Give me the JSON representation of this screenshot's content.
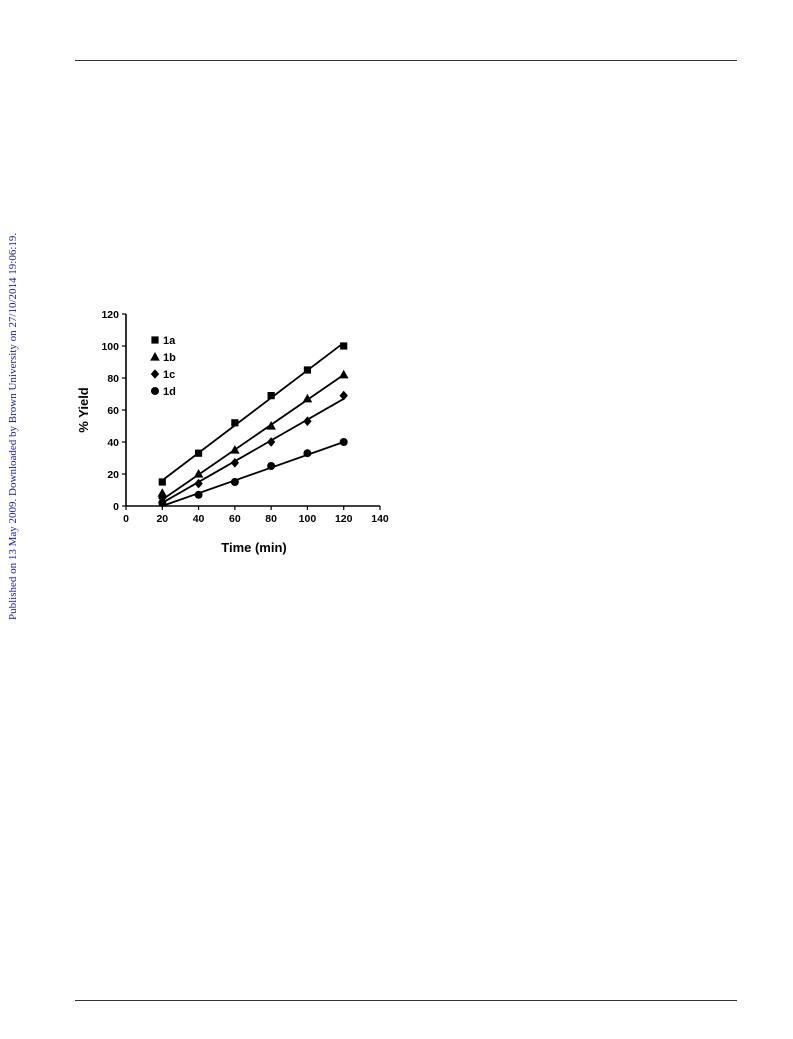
{
  "page": {
    "side_note": "Published on 13 May 2009. Downloaded by Brown University on 27/10/2014 19:06:19.",
    "link_color": "#1a1aa8",
    "rule_color": "#333333"
  },
  "chart_data": {
    "type": "scatter",
    "title": "",
    "xlabel": "Time (min)",
    "ylabel": "% Yield",
    "xlim": [
      0,
      140
    ],
    "ylim": [
      0,
      120
    ],
    "xticks": [
      "0",
      "20",
      "40",
      "60",
      "80",
      "100",
      "120",
      "140"
    ],
    "yticks": [
      "0",
      "20",
      "40",
      "60",
      "80",
      "100",
      "120"
    ],
    "grid": false,
    "legend": "top-left",
    "x": [
      20,
      40,
      60,
      80,
      100,
      120
    ],
    "series": [
      {
        "name": "1a",
        "marker": "square",
        "values": [
          15,
          33,
          52,
          69,
          85,
          100
        ],
        "fit": [
          [
            20,
            16
          ],
          [
            120,
            102
          ]
        ]
      },
      {
        "name": "1b",
        "marker": "triangle",
        "values": [
          8,
          20,
          35,
          50,
          67,
          82
        ],
        "fit": [
          [
            20,
            4
          ],
          [
            120,
            82
          ]
        ]
      },
      {
        "name": "1c",
        "marker": "diamond",
        "values": [
          5,
          14,
          27,
          40,
          53,
          69
        ],
        "fit": [
          [
            20,
            2
          ],
          [
            120,
            67
          ]
        ]
      },
      {
        "name": "1d",
        "marker": "circle",
        "values": [
          2,
          7,
          15,
          25,
          33,
          40
        ],
        "fit": [
          [
            20,
            0
          ],
          [
            120,
            40
          ]
        ]
      }
    ],
    "color": "#000000"
  }
}
